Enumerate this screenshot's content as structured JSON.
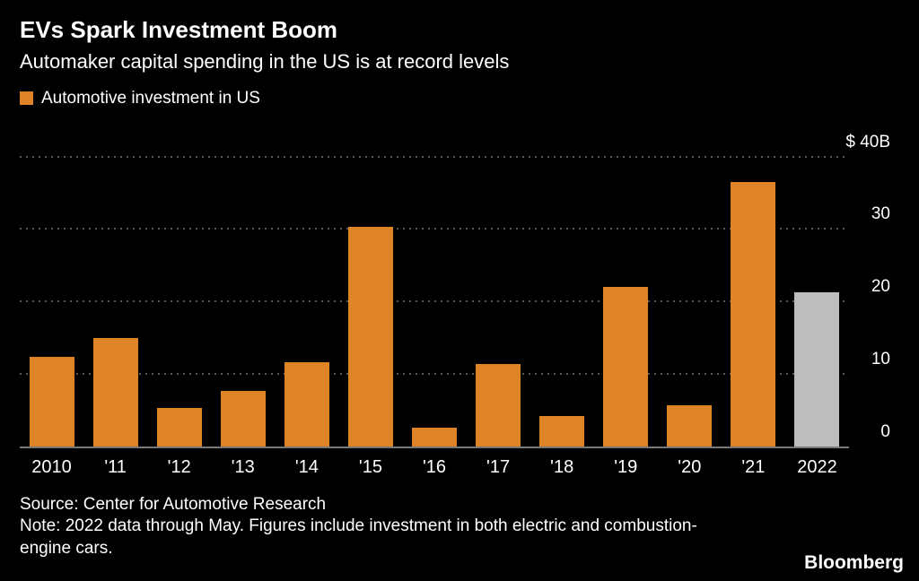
{
  "header": {
    "title": "EVs Spark Investment Boom",
    "subtitle": "Automaker capital spending in the US is at record levels"
  },
  "legend": {
    "label": "Automotive investment in US",
    "swatch_color": "#DF8426"
  },
  "chart_data": {
    "type": "bar",
    "title": "EVs Spark Investment Boom",
    "subtitle": "Automaker capital spending in the US is at record levels",
    "series_name": "Automotive investment in US",
    "categories": [
      "2010",
      "'11",
      "'12",
      "'13",
      "'14",
      "'15",
      "'16",
      "'17",
      "'18",
      "'19",
      "'20",
      "'21",
      "2022"
    ],
    "values": [
      12.3,
      14.9,
      5.3,
      7.6,
      11.6,
      30.3,
      2.6,
      11.4,
      4.2,
      22.0,
      5.7,
      36.5,
      21.3
    ],
    "unit": "$B",
    "xlabel": "",
    "ylabel": "",
    "ylim": [
      0,
      40
    ],
    "yticks": [
      {
        "value": 40,
        "label": "$ 40B"
      },
      {
        "value": 30,
        "label": "30"
      },
      {
        "value": 20,
        "label": "20"
      },
      {
        "value": 10,
        "label": "10"
      },
      {
        "value": 0,
        "label": "0"
      }
    ],
    "bar_colors": [
      "#DF8426",
      "#DF8426",
      "#DF8426",
      "#DF8426",
      "#DF8426",
      "#DF8426",
      "#DF8426",
      "#DF8426",
      "#DF8426",
      "#DF8426",
      "#DF8426",
      "#DF8426",
      "#BDBDBD"
    ],
    "grid": "horizontal-dotted",
    "legend_position": "top-left",
    "axis_side": "right"
  },
  "footer": {
    "source": "Source: Center for Automotive Research",
    "note": "Note: 2022 data through May. Figures include investment in both electric and combustion-engine cars.",
    "brand": "Bloomberg"
  },
  "colors": {
    "background": "#000000",
    "bar": "#DF8426",
    "final_bar": "#BDBDBD",
    "grid": "#575757",
    "axis_line": "#787878",
    "text": "#FFFFFF"
  }
}
